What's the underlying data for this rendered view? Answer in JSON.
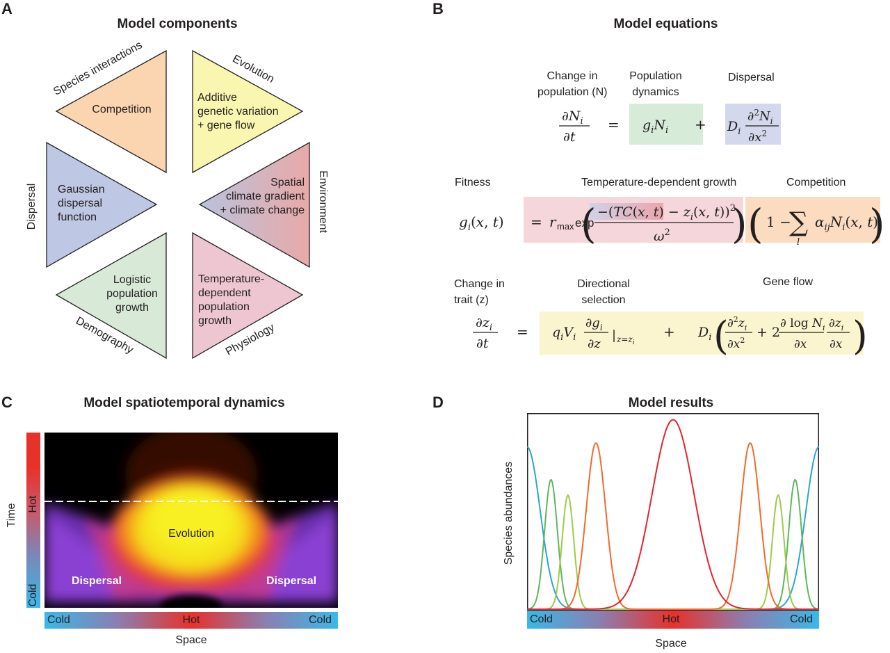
{
  "panel_a": {
    "letter": "A",
    "title": "Model components",
    "triangles": [
      {
        "text": "Competition",
        "category": "Species interactions",
        "color": "#fbd5b0"
      },
      {
        "text": "Additive genetic variation + gene flow",
        "category": "Evolution",
        "color": "#f9f6b0"
      },
      {
        "text": "Spatial climate gradient + climate change",
        "category": "Environment",
        "colors": [
          "#b9c2dc",
          "#e9a9a8"
        ]
      },
      {
        "text": "Temperature-dependent population growth",
        "category": "Physiology",
        "color": "#edc6d2"
      },
      {
        "text": "Logistic population growth",
        "category": "Demography",
        "color": "#d8e9d8"
      },
      {
        "text": "Gaussian dispersal function",
        "category": "Dispersal",
        "color": "#bec7e3"
      }
    ],
    "lines": {
      "additive": [
        "Additive",
        "genetic variation",
        "+ gene flow"
      ],
      "spatial": [
        "Spatial",
        "climate gradient",
        "+ climate change"
      ],
      "gaussian": [
        "Gaussian",
        "dispersal",
        "function"
      ],
      "logistic": [
        "Logistic",
        "population",
        "growth"
      ],
      "tempdep": [
        "Temperature-",
        "dependent",
        "population",
        "growth"
      ]
    }
  },
  "panel_b": {
    "letter": "B",
    "title": "Model equations",
    "eq1": {
      "label_change": [
        "Change in",
        "population (N)"
      ],
      "label_popdyn": [
        "Population",
        "dynamics"
      ],
      "label_dispersal": "Dispersal",
      "popdyn_color": "#d7ebd9",
      "dispersal_color": "#d4d8ec"
    },
    "eq2": {
      "label_fitness": "Fitness",
      "label_tempgrowth": "Temperature-dependent growth",
      "label_competition": "Competition",
      "tempgrowth_color": "#f5d6da",
      "competition_color": "#fbdcc0"
    },
    "eq3": {
      "label_change": [
        "Change in",
        "trait (z)"
      ],
      "label_selection": [
        "Directional",
        "selection"
      ],
      "label_geneflow": "Gene flow",
      "highlight_color": "#faf4cf"
    }
  },
  "panel_c": {
    "letter": "C",
    "title": "Model spatiotemporal dynamics",
    "time_label": "Time",
    "time_hot": "Hot",
    "time_cold": "Cold",
    "evolution_label": "Evolution",
    "dispersal_left": "Dispersal",
    "dispersal_right": "Dispersal",
    "space_left": "Cold",
    "space_mid": "Hot",
    "space_right": "Cold",
    "space_label": "Space",
    "colors": {
      "cold": "#3ab8e7",
      "hot": "#e8312b"
    }
  },
  "panel_d": {
    "letter": "D",
    "title": "Model results",
    "ylabel": "Species abundances",
    "space_left": "Cold",
    "space_mid": "Hot",
    "space_right": "Cold",
    "space_label": "Space"
  },
  "chart_data": {
    "type": "line",
    "title": "Model results",
    "xlabel": "Space",
    "ylabel": "Species abundances",
    "x_axis_ticks": [
      "Cold",
      "Hot",
      "Cold"
    ],
    "xlim": [
      0,
      1
    ],
    "ylim": [
      0,
      1
    ],
    "grid": false,
    "series": [
      {
        "color": "#2aa6d0",
        "peaks": [
          {
            "x": 0.0,
            "height": 0.84,
            "width": 0.045
          },
          {
            "x": 1.0,
            "height": 0.84,
            "width": 0.045
          }
        ]
      },
      {
        "color": "#5cb85c",
        "peaks": [
          {
            "x": 0.082,
            "height": 0.67,
            "width": 0.022
          },
          {
            "x": 0.918,
            "height": 0.67,
            "width": 0.022
          }
        ]
      },
      {
        "color": "#9ccc45",
        "peaks": [
          {
            "x": 0.14,
            "height": 0.59,
            "width": 0.02
          },
          {
            "x": 0.86,
            "height": 0.59,
            "width": 0.02
          }
        ]
      },
      {
        "color": "#f06a2c",
        "peaks": [
          {
            "x": 0.236,
            "height": 0.86,
            "width": 0.033
          },
          {
            "x": 0.764,
            "height": 0.86,
            "width": 0.033
          }
        ]
      },
      {
        "color": "#e3242b",
        "peaks": [
          {
            "x": 0.5,
            "height": 0.98,
            "width": 0.072
          }
        ]
      }
    ]
  }
}
